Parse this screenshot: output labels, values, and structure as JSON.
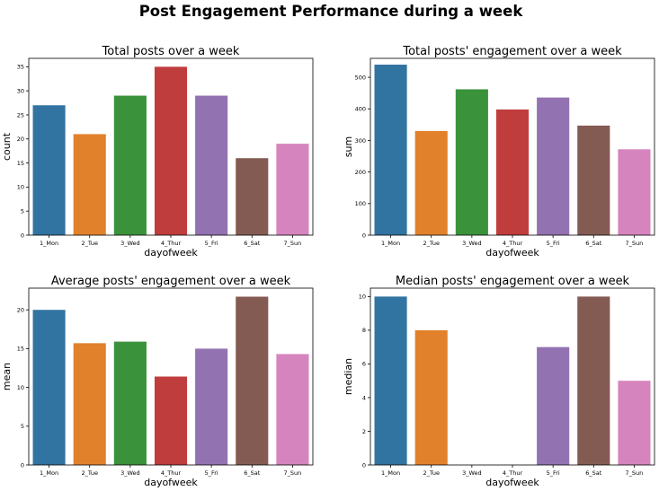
{
  "figure": {
    "title": "Post Engagement Performance during a week"
  },
  "chart_data": [
    {
      "type": "bar",
      "title": "Total posts over a week",
      "xlabel": "dayofweek",
      "ylabel": "count",
      "categories": [
        "1_Mon",
        "2_Tue",
        "3_Wed",
        "4_Thur",
        "5_Fri",
        "6_Sat",
        "7_Sun"
      ],
      "values": [
        27,
        21,
        29,
        35,
        29,
        16,
        19
      ],
      "ylim": [
        0,
        36.75
      ],
      "yticks": [
        0,
        5,
        10,
        15,
        20,
        25,
        30,
        35
      ],
      "colors": [
        "#3274a1",
        "#e1812c",
        "#3a923a",
        "#c03d3e",
        "#9372b2",
        "#845b53",
        "#d684bd"
      ]
    },
    {
      "type": "bar",
      "title": "Total posts' engagement over a week",
      "xlabel": "dayofweek",
      "ylabel": "sum",
      "categories": [
        "1_Mon",
        "2_Tue",
        "3_Wed",
        "4_Thur",
        "5_Fri",
        "6_Sat",
        "7_Sun"
      ],
      "values": [
        540,
        330,
        462,
        398,
        436,
        347,
        272
      ],
      "ylim": [
        0,
        560
      ],
      "yticks": [
        0,
        100,
        200,
        300,
        400,
        500
      ],
      "colors": [
        "#3274a1",
        "#e1812c",
        "#3a923a",
        "#c03d3e",
        "#9372b2",
        "#845b53",
        "#d684bd"
      ]
    },
    {
      "type": "bar",
      "title": "Average posts' engagement over a week",
      "xlabel": "dayofweek",
      "ylabel": "mean",
      "categories": [
        "1_Mon",
        "2_Tue",
        "3_Wed",
        "4_Thur",
        "5_Fri",
        "6_Sat",
        "7_Sun"
      ],
      "values": [
        20.0,
        15.7,
        15.9,
        11.4,
        15.0,
        21.7,
        14.3
      ],
      "ylim": [
        0,
        22.8
      ],
      "yticks": [
        0,
        5,
        10,
        15,
        20
      ],
      "colors": [
        "#3274a1",
        "#e1812c",
        "#3a923a",
        "#c03d3e",
        "#9372b2",
        "#845b53",
        "#d684bd"
      ]
    },
    {
      "type": "bar",
      "title": "Median posts' engagement over a week",
      "xlabel": "dayofweek",
      "ylabel": "median",
      "categories": [
        "1_Mon",
        "2_Tue",
        "3_Wed",
        "4_Thur",
        "5_Fri",
        "6_Sat",
        "7_Sun"
      ],
      "values": [
        10,
        8,
        0,
        0,
        7,
        10,
        5
      ],
      "ylim": [
        0,
        10.5
      ],
      "yticks": [
        0,
        2,
        4,
        6,
        8,
        10
      ],
      "colors": [
        "#3274a1",
        "#e1812c",
        "#3a923a",
        "#c03d3e",
        "#9372b2",
        "#845b53",
        "#d684bd"
      ]
    }
  ]
}
